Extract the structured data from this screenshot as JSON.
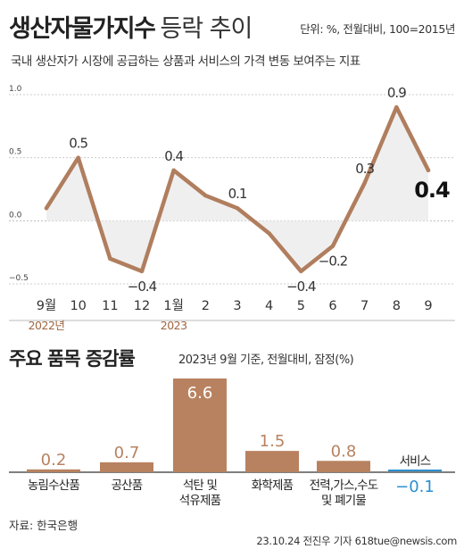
{
  "header": {
    "title": "생산자물가지수",
    "title_suffix": "등락 추이",
    "unit": "단위: %, 전월대비, 100=2015년",
    "description": "국내 생산자가 시장에 공급하는 상품과 서비스의 가격 변동 보여주는 지표"
  },
  "section2": {
    "title": "주요 품목 증감률",
    "note": "2023년 9월 기준, 전월대비, 잠정(%)"
  },
  "footer": {
    "source": "자료: 한국은행",
    "credit": "23.10.24 전진우 기자 618tue@newsis.com"
  },
  "colors": {
    "line": "#b07e5e",
    "bar": "#b88260",
    "negative_label": "#2a8fd0",
    "year_label": "#a0663f",
    "grid": "#cccccc",
    "fill": "#efefef"
  },
  "chart_data": [
    {
      "type": "line",
      "x": [
        "9월",
        "10",
        "11",
        "12",
        "1월",
        "2",
        "3",
        "4",
        "5",
        "6",
        "7",
        "8",
        "9"
      ],
      "year_labels": [
        {
          "index": 0,
          "text": "2022년"
        },
        {
          "index": 4,
          "text": "2023"
        }
      ],
      "values": [
        0.1,
        0.5,
        -0.3,
        -0.4,
        0.4,
        0.2,
        0.1,
        -0.1,
        -0.4,
        -0.2,
        0.3,
        0.9,
        0.4
      ],
      "data_labels": [
        "",
        "0.5",
        "",
        "−0.4",
        "0.4",
        "",
        "0.1",
        "",
        "−0.4",
        "−0.2",
        "0.3",
        "0.9",
        "0.4"
      ],
      "highlight_last": true,
      "y_ticks": [
        "1.0",
        "0.5",
        "0.0",
        "−0.5"
      ],
      "y_tick_values": [
        1.0,
        0.5,
        0.0,
        -0.5
      ],
      "ylim": [
        -0.5,
        1.0
      ],
      "grid": true
    },
    {
      "type": "bar",
      "categories": [
        "농림수산품",
        "공산품",
        "석탄 및\n석유제품",
        "화학제품",
        "전력,가스,수도\n및 폐기물",
        "서비스"
      ],
      "values": [
        0.2,
        0.7,
        6.6,
        1.5,
        0.8,
        -0.1
      ],
      "value_labels": [
        "0.2",
        "0.7",
        "6.6",
        "1.5",
        "0.8",
        "−0.1"
      ]
    }
  ]
}
